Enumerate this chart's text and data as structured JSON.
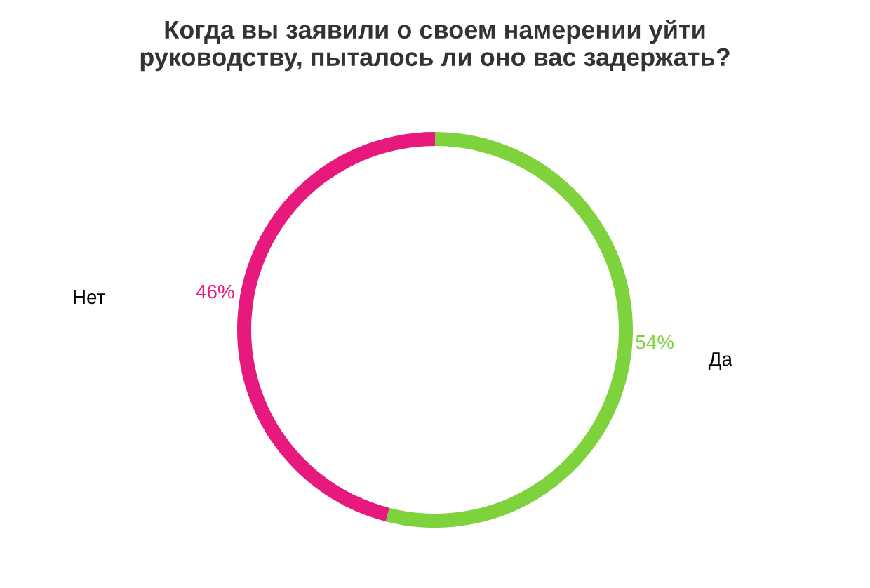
{
  "chart_data": {
    "type": "donut",
    "title": "Когда вы заявили о своем намерении уйти\nруководству, пыталось ли оно вас задержать?",
    "categories": [
      "Да",
      "Нет"
    ],
    "values": [
      54,
      46
    ],
    "colors": [
      "#7ed23c",
      "#e8197d"
    ],
    "value_labels": [
      "54%",
      "46%"
    ],
    "legend": false
  }
}
